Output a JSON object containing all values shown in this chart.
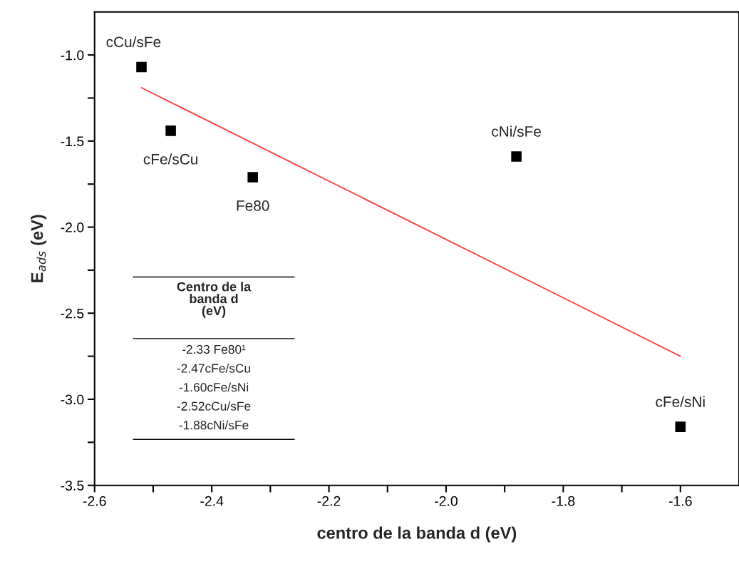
{
  "chart_data": {
    "type": "scatter",
    "xlabel": "centro de la banda d (eV)",
    "ylabel": "E$_{ads}$ (eV)",
    "xlim": [
      -2.6,
      -1.5
    ],
    "ylim": [
      -3.5,
      -0.75
    ],
    "xticks": [
      -2.6,
      {
        "value": -2.5,
        "label": null
      },
      -2.4,
      {
        "value": -2.3,
        "label": null
      },
      -2.2,
      {
        "value": -2.1,
        "label": null
      },
      {
        "value": -2.0,
        "label": "-2.0"
      },
      {
        "value": -1.9,
        "label": null
      },
      -1.8,
      {
        "value": -1.7,
        "label": null
      },
      -1.6
    ],
    "yticks": [
      -3.5,
      {
        "value": -3.25,
        "label": null
      },
      {
        "value": -3.0,
        "label": "-3.0"
      },
      {
        "value": -2.75,
        "label": null
      },
      -2.5,
      {
        "value": -2.25,
        "label": null
      },
      {
        "value": -2.0,
        "label": "-2.0"
      },
      {
        "value": -1.75,
        "label": null
      },
      -1.5,
      {
        "value": -1.25,
        "label": null
      },
      {
        "value": -1.0,
        "label": "-1.0"
      }
    ],
    "grid": false,
    "legend": false,
    "marker": "square",
    "series": [
      {
        "color": "#000000",
        "x": [
          -2.52,
          -2.47,
          -2.33,
          -1.88,
          -1.6
        ],
        "values": [
          -1.07,
          -1.44,
          -1.71,
          -1.59,
          -3.16
        ]
      },
      {
        "type": "line",
        "color": "#ff4040",
        "marker": "none",
        "line_style": "solid",
        "x": [
          -2.52,
          -1.6
        ],
        "values": [
          -1.19,
          -2.75
        ]
      }
    ],
    "annotations": [
      {
        "text": "cCu/sFe",
        "x": -2.52,
        "y": -1.07
      },
      {
        "text": "cFe/sCu",
        "x": -2.47,
        "y": -1.44
      },
      {
        "text": "Fe80",
        "x": -2.33,
        "y": -1.71
      },
      {
        "text": "cNi/sFe",
        "x": -1.88,
        "y": -1.59
      },
      {
        "text": "cFe/sNi",
        "x": -1.6,
        "y": -3.16
      },
      "Centro de la\nbanda d\n(eV)",
      "-2.33 Fe80¹",
      "-2.47cFe/sCu",
      "-1.60cFe/sNi",
      "-2.52cCu/sFe",
      "-1.88cNi/sFe"
    ]
  }
}
